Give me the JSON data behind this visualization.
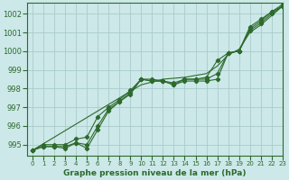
{
  "title": "Graphe pression niveau de la mer (hPa)",
  "background_color": "#cce8e8",
  "grid_color": "#aacccc",
  "line_color": "#2d6a2d",
  "xlim": [
    -0.5,
    23
  ],
  "ylim": [
    994.4,
    1002.6
  ],
  "yticks": [
    995,
    996,
    997,
    998,
    999,
    1000,
    1001,
    1002
  ],
  "xticks": [
    0,
    1,
    2,
    3,
    4,
    5,
    6,
    7,
    8,
    9,
    10,
    11,
    12,
    13,
    14,
    15,
    16,
    17,
    18,
    19,
    20,
    21,
    22,
    23
  ],
  "series": [
    [
      994.7,
      994.9,
      994.9,
      994.8,
      995.1,
      994.8,
      995.8,
      996.8,
      997.3,
      997.7,
      998.5,
      998.4,
      998.4,
      998.2,
      998.4,
      998.4,
      998.4,
      998.5,
      999.9,
      1000.0,
      1001.1,
      1001.5,
      1002.0,
      1002.4
    ],
    [
      994.7,
      994.9,
      994.9,
      994.9,
      995.1,
      995.0,
      996.0,
      996.9,
      997.3,
      997.8,
      998.5,
      998.4,
      998.4,
      998.2,
      998.5,
      998.5,
      998.5,
      998.8,
      999.9,
      1000.0,
      1001.2,
      1001.6,
      1002.1,
      1002.4
    ],
    [
      994.7,
      995.0,
      995.0,
      995.0,
      995.3,
      995.4,
      996.5,
      997.0,
      997.4,
      997.9,
      998.5,
      998.5,
      998.4,
      998.3,
      998.5,
      998.5,
      998.6,
      999.5,
      999.9,
      1000.0,
      1001.3,
      1001.7,
      1002.1,
      1002.5
    ]
  ],
  "series_straight": [
    [
      994.7,
      995.05,
      995.4,
      995.75,
      996.1,
      996.45,
      996.8,
      997.15,
      997.5,
      997.85,
      998.2,
      998.35,
      998.5,
      998.55,
      998.6,
      998.7,
      998.8,
      999.2,
      999.8,
      1000.1,
      1001.0,
      1001.4,
      1001.9,
      1002.4
    ]
  ]
}
